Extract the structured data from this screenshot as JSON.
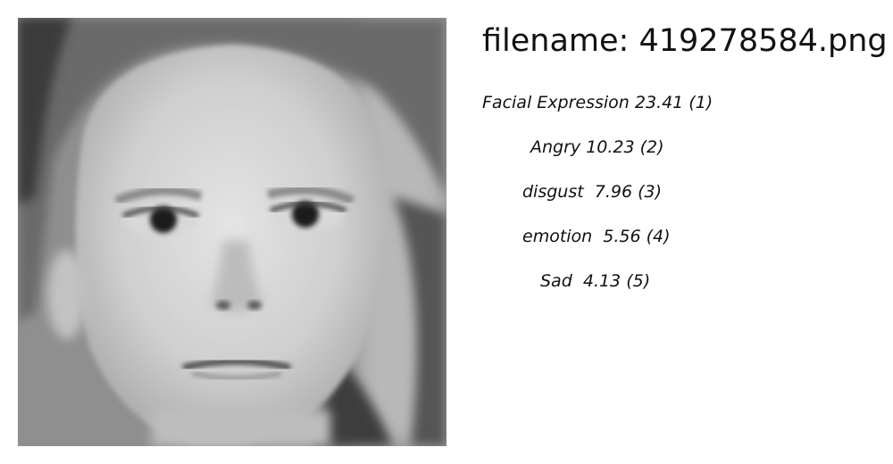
{
  "title": "filename: 419278584.png",
  "predictions": [
    "Facial Expression 23.41 (1)",
    "Angry 10.23 (2)",
    "disgust  7.96 (3)",
    "emotion  5.56 (4)",
    "Sad  4.13 (5)"
  ]
}
